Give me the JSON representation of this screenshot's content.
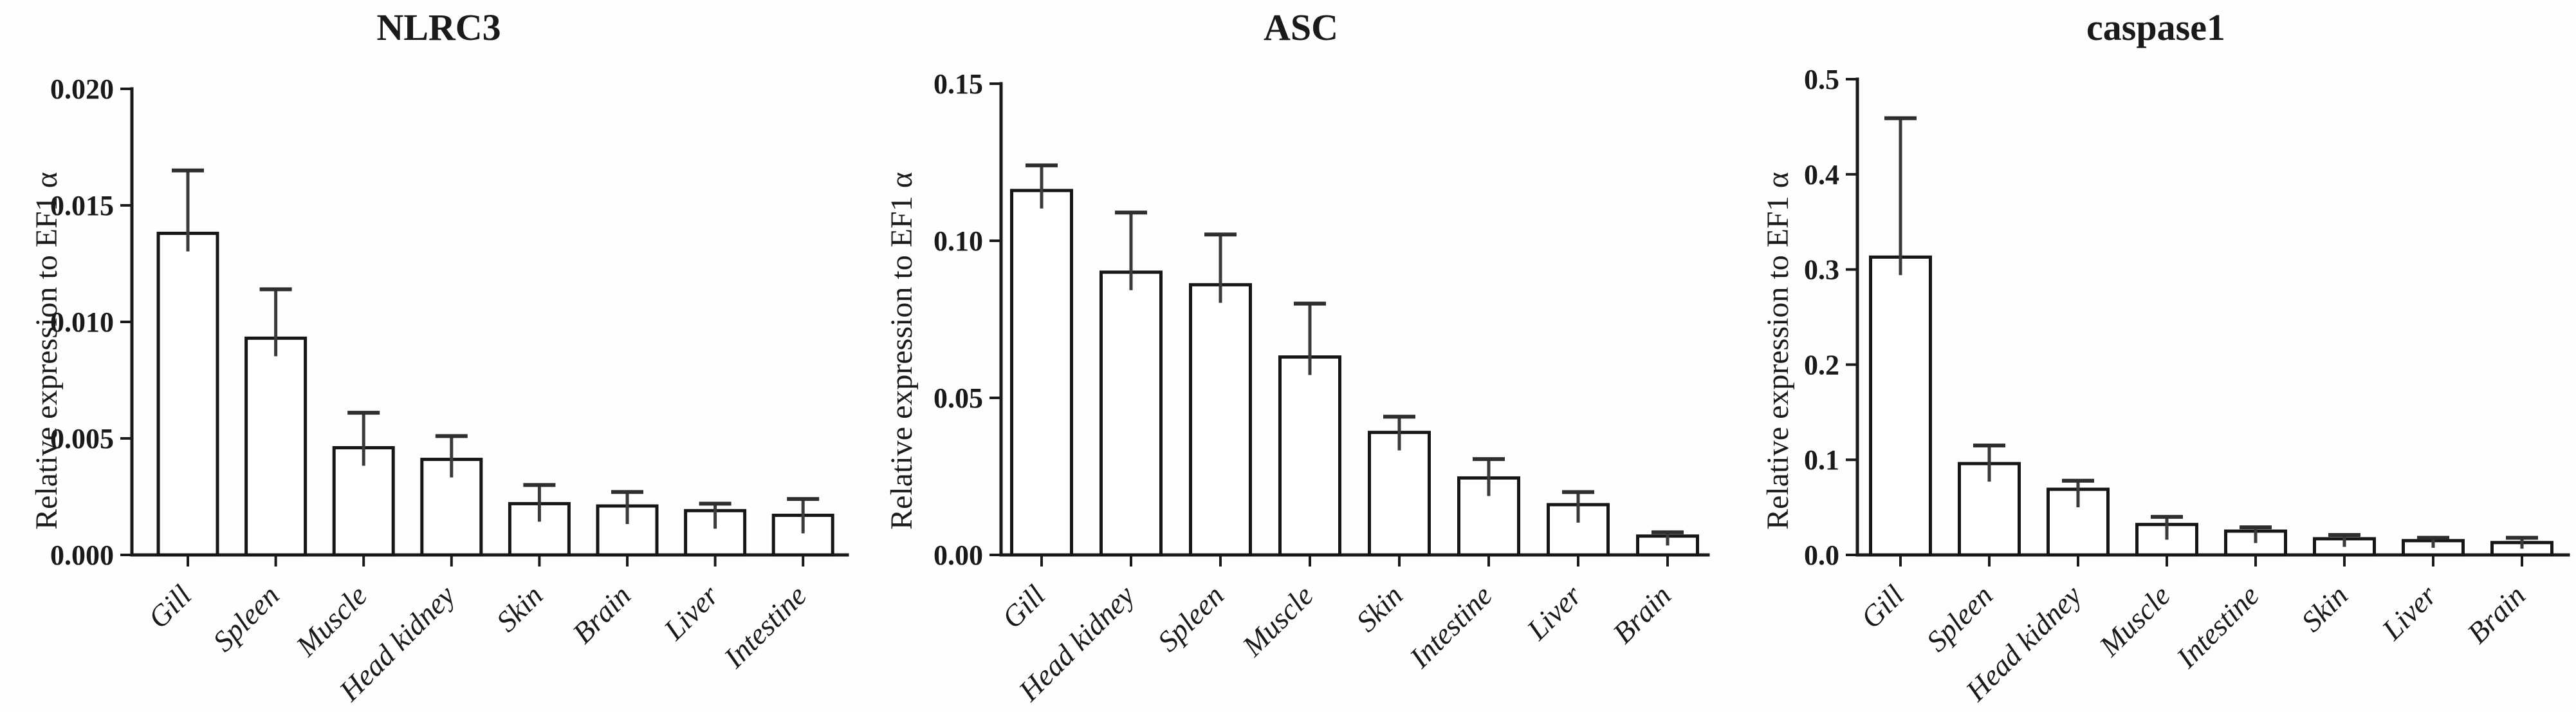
{
  "figure": {
    "background": "#fefefe",
    "ink": "#1a1a1a",
    "error_bar_color": "#3a3a3a",
    "bar_fill": "#ffffff"
  },
  "chart_data": [
    {
      "type": "bar",
      "title": "NLRC3",
      "ylabel": "Relative expression to EF1 α",
      "xlabel": "",
      "categories": [
        "Gill",
        "Spleen",
        "Muscle",
        "Head kidney",
        "Skin",
        "Brain",
        "Liver",
        "Intestine"
      ],
      "values": [
        0.0138,
        0.0093,
        0.0046,
        0.0041,
        0.0022,
        0.0021,
        0.0019,
        0.0017
      ],
      "errors": [
        0.0027,
        0.0021,
        0.0015,
        0.001,
        0.0008,
        0.0006,
        0.0003,
        0.0007
      ],
      "ylim": [
        0,
        0.02
      ],
      "ytick_labels": [
        "0.020",
        "0.015",
        "0.010",
        "0.005",
        "0.000"
      ],
      "grid": false,
      "legend": null,
      "bar_style": "white-filled-black-outline",
      "error_bar_style": "upper-SEM-with-cap"
    },
    {
      "type": "bar",
      "title": "ASC",
      "ylabel": "Relative expression to EF1 α",
      "xlabel": "",
      "categories": [
        "Gill",
        "Head kidney",
        "Spleen",
        "Muscle",
        "Skin",
        "Intestine",
        "Liver",
        "Brain"
      ],
      "values": [
        0.116,
        0.09,
        0.086,
        0.063,
        0.039,
        0.0245,
        0.016,
        0.006
      ],
      "errors": [
        0.008,
        0.019,
        0.016,
        0.017,
        0.005,
        0.006,
        0.004,
        0.0012
      ],
      "ylim": [
        0,
        0.15
      ],
      "ytick_labels": [
        "0.15",
        "0.10",
        "0.05",
        "0.00"
      ],
      "grid": false,
      "legend": null,
      "bar_style": "white-filled-black-outline",
      "error_bar_style": "upper-SEM-with-cap"
    },
    {
      "type": "bar",
      "title": "caspase1",
      "ylabel": "Relative expression to EF1 α",
      "xlabel": "",
      "categories": [
        "Gill",
        "Spleen",
        "Head kidney",
        "Muscle",
        "Intestine",
        "Skin",
        "Liver",
        "Brain"
      ],
      "values": [
        0.313,
        0.096,
        0.069,
        0.032,
        0.025,
        0.017,
        0.015,
        0.013
      ],
      "errors": [
        0.146,
        0.019,
        0.009,
        0.008,
        0.004,
        0.004,
        0.003,
        0.005
      ],
      "ylim": [
        0,
        0.5
      ],
      "ytick_labels": [
        "0.5",
        "0.4",
        "0.3",
        "0.2",
        "0.1",
        "0.0"
      ],
      "grid": false,
      "legend": null,
      "bar_style": "white-filled-black-outline",
      "error_bar_style": "upper-SEM-with-cap"
    }
  ]
}
